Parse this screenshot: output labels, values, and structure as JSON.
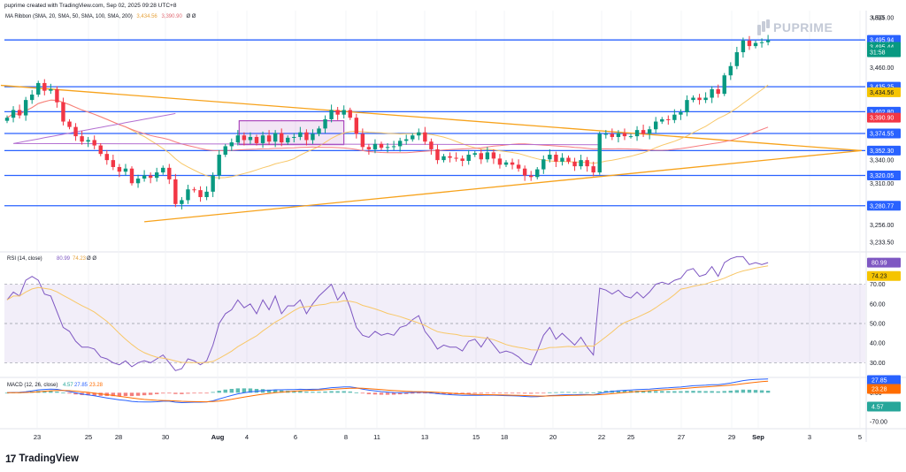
{
  "header": {
    "created_by": "puprime created with TradingView.com, Sep 02, 2025 09:28 UTC+8",
    "currency": "USD",
    "logo": "PUPRIME",
    "footer_brand": "TradingView",
    "footer_mark": "17"
  },
  "ribbon": {
    "label": "MA Ribbon (SMA, 20, SMA, 50, SMA, 100, SMA, 200)",
    "value1": "3,434.56",
    "value2": "3,390.90",
    "extra": "Ø Ø"
  },
  "rsi": {
    "label": "RSI (14, close)",
    "value": "80.99",
    "ma": "74.23",
    "extra": "Ø Ø"
  },
  "macd": {
    "label": "MACD (12, 26, close)",
    "hist": "4.57",
    "macd": "27.85",
    "signal": "23.28"
  },
  "colors": {
    "up": "#089981",
    "down": "#f23645",
    "hline": "#2962ff",
    "trend": "#f7a21b",
    "sma20": "#f8c767",
    "sma50": "#f77c80",
    "sma100": "#b36fd1",
    "rsi": "#7e57c2",
    "rsi_ma": "#f8c767",
    "macd": "#2962ff",
    "signal": "#ff6d00"
  },
  "chart_data": [
    {
      "type": "candlestick",
      "title": "",
      "ylim": [
        3222,
        3534
      ],
      "y_ticks": [
        3525.0,
        3460.0,
        3340.0,
        3310.0,
        3256.0,
        3233.5
      ],
      "x_ticks": [
        "23",
        "25",
        "28",
        "30",
        "Aug",
        "4",
        "6",
        "8",
        "11",
        "13",
        "15",
        "18",
        "20",
        "22",
        "25",
        "27",
        "29",
        "Sep",
        "3",
        "5"
      ],
      "horizontal_levels": [
        3495.94,
        3435.25,
        3402.8,
        3374.55,
        3352.3,
        3320.05,
        3280.77
      ],
      "price_labels": [
        {
          "text": "3,495.94",
          "kind": "level"
        },
        {
          "text": "3,495.44",
          "kind": "last"
        },
        {
          "text": "31:58",
          "kind": "timer"
        },
        {
          "text": "3,435.25",
          "kind": "level"
        },
        {
          "text": "3,434.56",
          "kind": "sma"
        },
        {
          "text": "3,402.80",
          "kind": "level"
        },
        {
          "text": "3,390.90",
          "kind": "sma50"
        },
        {
          "text": "3,374.55",
          "kind": "level"
        },
        {
          "text": "3,352.30",
          "kind": "level"
        },
        {
          "text": "3,320.05",
          "kind": "level"
        },
        {
          "text": "3,280.77",
          "kind": "level"
        }
      ],
      "closes": [
        3395,
        3405,
        3398,
        3418,
        3425,
        3440,
        3430,
        3432,
        3415,
        3390,
        3383,
        3371,
        3364,
        3366,
        3359,
        3348,
        3340,
        3331,
        3325,
        3329,
        3310,
        3316,
        3320,
        3317,
        3324,
        3330,
        3315,
        3283,
        3288,
        3302,
        3301,
        3292,
        3299,
        3320,
        3347,
        3358,
        3363,
        3372,
        3366,
        3370,
        3362,
        3372,
        3364,
        3375,
        3363,
        3369,
        3370,
        3376,
        3366,
        3374,
        3381,
        3393,
        3405,
        3399,
        3405,
        3395,
        3374,
        3357,
        3354,
        3361,
        3356,
        3357,
        3358,
        3365,
        3367,
        3372,
        3376,
        3364,
        3354,
        3340,
        3345,
        3343,
        3342,
        3339,
        3347,
        3349,
        3341,
        3350,
        3342,
        3334,
        3337,
        3334,
        3329,
        3320,
        3318,
        3328,
        3341,
        3347,
        3338,
        3343,
        3338,
        3332,
        3340,
        3332,
        3324,
        3374,
        3374,
        3370,
        3375,
        3371,
        3371,
        3379,
        3374,
        3380,
        3390,
        3393,
        3392,
        3399,
        3402,
        3418,
        3421,
        3418,
        3421,
        3432,
        3426,
        3450,
        3462,
        3480,
        3495,
        3488,
        3492,
        3493,
        3495.44
      ]
    },
    {
      "type": "line",
      "title": "RSI (14, close)",
      "ylim": [
        23,
        86
      ],
      "y_ticks": [
        70.0,
        60.0,
        50.0,
        40.0,
        30.0
      ],
      "band": [
        30,
        70
      ],
      "series": [
        {
          "name": "RSI",
          "values": [
            62,
            66,
            64,
            72,
            74,
            72,
            65,
            64,
            56,
            48,
            46,
            41,
            38,
            38,
            37,
            33,
            32,
            30,
            29,
            31,
            28,
            30,
            31,
            30,
            32,
            34,
            30,
            26,
            27,
            32,
            31,
            29,
            31,
            39,
            50,
            55,
            57,
            62,
            58,
            60,
            55,
            62,
            57,
            64,
            55,
            59,
            59,
            62,
            55,
            60,
            64,
            67,
            70,
            62,
            66,
            58,
            48,
            44,
            43,
            46,
            44,
            45,
            44,
            48,
            49,
            52,
            54,
            46,
            42,
            37,
            39,
            38,
            38,
            36,
            41,
            42,
            38,
            43,
            39,
            35,
            36,
            35,
            33,
            30,
            29,
            36,
            44,
            48,
            42,
            45,
            42,
            39,
            43,
            38,
            34,
            68,
            67,
            65,
            67,
            64,
            63,
            66,
            63,
            66,
            70,
            71,
            70,
            72,
            73,
            77,
            78,
            74,
            75,
            79,
            74,
            81,
            83,
            84,
            84,
            80,
            81,
            80,
            80.99
          ]
        }
      ]
    },
    {
      "type": "line",
      "title": "MACD (12, 26, close)",
      "ylim": [
        -85,
        35
      ],
      "y_ticks": [
        0.0,
        -70.0
      ]
    }
  ]
}
